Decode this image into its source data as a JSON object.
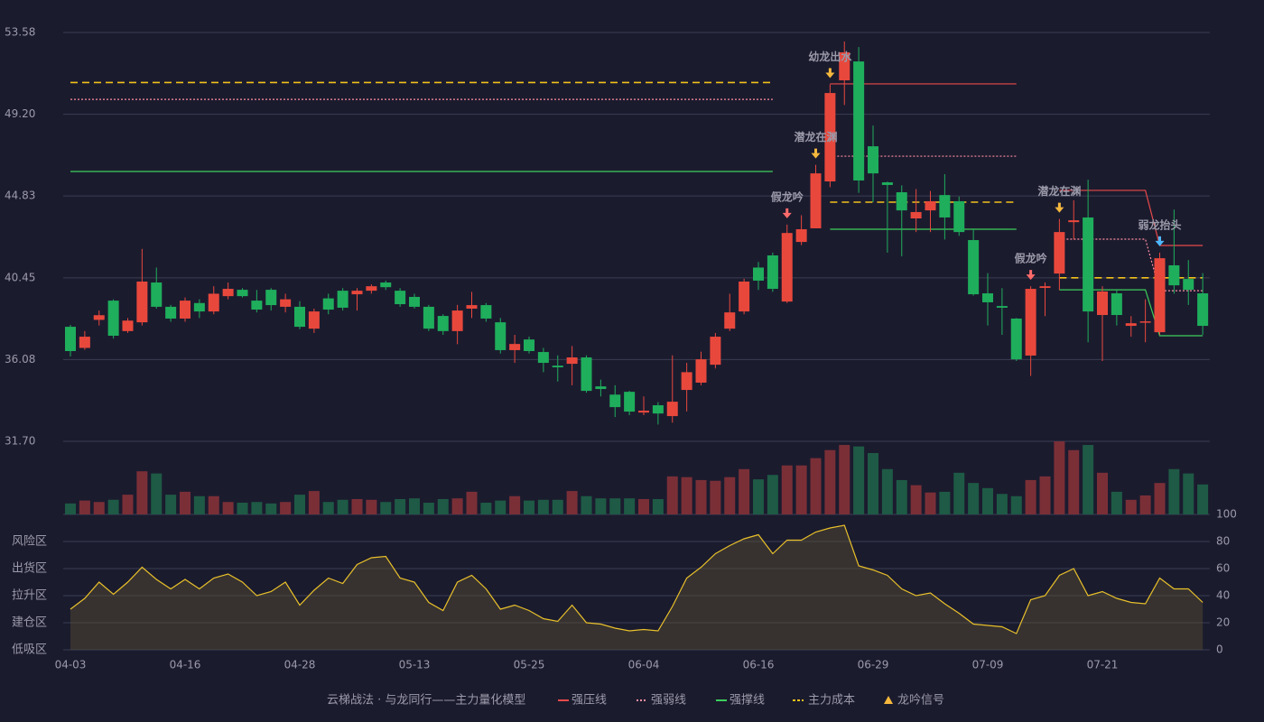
{
  "chart_data": [
    {
      "type": "candlestick",
      "categories": [
        "04-03",
        null,
        null,
        null,
        null,
        null,
        null,
        null,
        "04-16",
        null,
        null,
        null,
        null,
        null,
        null,
        null,
        "04-28",
        null,
        null,
        null,
        null,
        null,
        null,
        null,
        "05-13",
        null,
        null,
        null,
        null,
        null,
        null,
        null,
        "05-25",
        null,
        null,
        null,
        null,
        null,
        null,
        null,
        "06-04",
        null,
        null,
        null,
        null,
        null,
        null,
        null,
        "06-16",
        null,
        null,
        null,
        null,
        null,
        null,
        null,
        "06-29",
        null,
        null,
        null,
        null,
        null,
        null,
        null,
        "07-09",
        null,
        null,
        null,
        null,
        null,
        null,
        null,
        "07-21",
        null,
        null,
        null,
        null,
        null,
        null,
        null
      ],
      "open": [
        37.83,
        36.7,
        38.2,
        39.23,
        37.6,
        38.07,
        40.2,
        38.9,
        38.27,
        39.1,
        38.65,
        39.47,
        39.81,
        39.23,
        39.81,
        38.9,
        38.9,
        37.73,
        39.35,
        39.76,
        39.57,
        39.76,
        40.2,
        39.76,
        39.43,
        38.9,
        38.41,
        37.6,
        38.8,
        38.99,
        38.07,
        36.58,
        37.15,
        36.48,
        35.75,
        35.85,
        36.19,
        34.64,
        34.2,
        34.35,
        33.24,
        33.63,
        33.05,
        34.45,
        34.84,
        35.8,
        37.73,
        38.65,
        41.0,
        41.65,
        39.18,
        42.37,
        43.1,
        45.61,
        51.02,
        52.03,
        47.49,
        45.56,
        45.03,
        43.63,
        44.06,
        44.88,
        44.55,
        42.47,
        39.62,
        38.94,
        38.27,
        36.29,
        39.91,
        40.68,
        43.43,
        43.68,
        38.46,
        39.62,
        37.88,
        38.07,
        37.54,
        41.12,
        40.39,
        39.62
      ],
      "high": [
        37.93,
        37.6,
        38.7,
        39.3,
        38.3,
        42.0,
        41.0,
        39.0,
        39.4,
        39.3,
        40.0,
        40.2,
        39.9,
        39.8,
        39.9,
        39.6,
        39.2,
        38.8,
        39.6,
        39.9,
        39.9,
        40.1,
        40.3,
        39.9,
        39.6,
        39.0,
        38.5,
        39.0,
        39.7,
        39.1,
        38.3,
        37.4,
        37.3,
        36.7,
        36.3,
        36.8,
        36.3,
        35.0,
        34.7,
        34.4,
        34.1,
        33.8,
        36.3,
        35.9,
        36.5,
        37.5,
        39.6,
        40.4,
        41.3,
        41.8,
        43.3,
        43.8,
        46.5,
        50.8,
        53.1,
        52.8,
        48.6,
        45.6,
        45.4,
        45.2,
        45.1,
        46.0,
        44.8,
        43.1,
        40.7,
        39.9,
        38.3,
        40.0,
        40.2,
        43.6,
        44.6,
        45.7,
        40.0,
        39.8,
        38.4,
        39.3,
        41.8,
        44.1,
        41.4,
        40.7
      ],
      "low": [
        36.24,
        36.6,
        37.9,
        37.2,
        37.5,
        37.9,
        38.8,
        38.1,
        38.1,
        38.3,
        38.5,
        39.3,
        39.4,
        38.6,
        38.7,
        38.6,
        37.7,
        37.5,
        38.5,
        38.7,
        38.7,
        39.6,
        39.8,
        38.9,
        38.8,
        37.6,
        37.4,
        36.9,
        38.3,
        38.1,
        36.4,
        35.9,
        36.4,
        35.4,
        34.9,
        34.7,
        34.3,
        34.1,
        33.0,
        33.1,
        33.1,
        32.6,
        32.7,
        33.3,
        34.7,
        35.6,
        37.6,
        38.5,
        39.8,
        39.7,
        39.1,
        42.2,
        43.1,
        45.3,
        49.7,
        45.0,
        44.5,
        41.8,
        41.6,
        42.9,
        42.9,
        42.5,
        42.7,
        39.5,
        37.9,
        37.4,
        36.0,
        35.2,
        38.4,
        39.8,
        42.5,
        37.0,
        36.0,
        37.9,
        37.3,
        37.0,
        37.4,
        39.6,
        39.0,
        37.4
      ],
      "close": [
        36.53,
        37.3,
        38.45,
        37.35,
        38.16,
        40.25,
        38.9,
        38.27,
        39.23,
        38.65,
        39.6,
        39.86,
        39.47,
        38.75,
        38.99,
        39.3,
        37.83,
        38.65,
        38.75,
        38.85,
        39.76,
        40.0,
        39.95,
        39.04,
        38.9,
        37.73,
        37.6,
        38.7,
        38.99,
        38.27,
        36.58,
        36.91,
        36.53,
        35.9,
        35.66,
        36.19,
        34.4,
        34.5,
        33.53,
        33.29,
        33.34,
        33.19,
        33.82,
        35.4,
        36.09,
        37.3,
        38.6,
        40.25,
        40.3,
        39.86,
        42.85,
        43.05,
        46.04,
        50.34,
        52.52,
        45.66,
        46.04,
        45.42,
        44.06,
        43.97,
        44.55,
        43.68,
        42.9,
        39.57,
        39.14,
        38.85,
        36.09,
        39.86,
        40.0,
        42.9,
        43.53,
        38.65,
        39.72,
        38.46,
        38.02,
        38.12,
        41.5,
        40.05,
        39.81,
        37.88
      ],
      "up_color": "#e8483c",
      "down_color": "#1fae5c",
      "ylim": [
        31.7,
        53.58
      ],
      "yticks": [
        {
          "value": 31.7,
          "label": "31.70"
        },
        36.08,
        40.45,
        44.83,
        {
          "value": 49.2,
          "label": "49.20"
        },
        53.58
      ],
      "grid": true,
      "levels": [
        {
          "name": "强压线",
          "color": "#e84a4a",
          "dash": "none",
          "values": [
            null,
            null,
            null,
            null,
            null,
            null,
            null,
            null,
            null,
            null,
            null,
            null,
            null,
            null,
            null,
            null,
            null,
            null,
            null,
            null,
            null,
            null,
            null,
            null,
            null,
            null,
            null,
            null,
            null,
            null,
            null,
            null,
            null,
            null,
            null,
            null,
            null,
            null,
            null,
            null,
            null,
            null,
            null,
            null,
            null,
            null,
            null,
            null,
            null,
            null,
            null,
            null,
            null,
            50.83,
            50.83,
            50.83,
            50.83,
            50.83,
            50.83,
            50.83,
            50.83,
            50.83,
            50.83,
            50.83,
            50.83,
            50.83,
            50.83,
            null,
            null,
            45.13,
            45.13,
            45.13,
            45.13,
            45.13,
            45.13,
            45.13,
            42.18,
            42.18,
            42.18,
            42.18
          ]
        },
        {
          "name": "强弱线",
          "color": "#ff8fa0",
          "dash": "2,2",
          "values": [
            50.0,
            50.0,
            50.0,
            50.0,
            50.0,
            50.0,
            50.0,
            50.0,
            50.0,
            50.0,
            50.0,
            50.0,
            50.0,
            50.0,
            50.0,
            50.0,
            50.0,
            50.0,
            50.0,
            50.0,
            50.0,
            50.0,
            50.0,
            50.0,
            50.0,
            50.0,
            50.0,
            50.0,
            50.0,
            50.0,
            50.0,
            50.0,
            50.0,
            50.0,
            50.0,
            50.0,
            50.0,
            50.0,
            50.0,
            50.0,
            50.0,
            50.0,
            50.0,
            50.0,
            50.0,
            50.0,
            50.0,
            50.0,
            50.0,
            50.0,
            null,
            null,
            null,
            46.96,
            46.96,
            46.96,
            46.96,
            46.96,
            46.96,
            46.96,
            46.96,
            46.96,
            46.96,
            46.96,
            46.96,
            46.96,
            46.96,
            null,
            null,
            42.52,
            42.52,
            42.52,
            42.52,
            42.52,
            42.52,
            42.52,
            39.76,
            39.76,
            39.76,
            39.76
          ]
        },
        {
          "name": "强撑线",
          "color": "#3ccf5a",
          "dash": "none",
          "values": [
            46.14,
            46.14,
            46.14,
            46.14,
            46.14,
            46.14,
            46.14,
            46.14,
            46.14,
            46.14,
            46.14,
            46.14,
            46.14,
            46.14,
            46.14,
            46.14,
            46.14,
            46.14,
            46.14,
            46.14,
            46.14,
            46.14,
            46.14,
            46.14,
            46.14,
            46.14,
            46.14,
            46.14,
            46.14,
            46.14,
            46.14,
            46.14,
            46.14,
            46.14,
            46.14,
            46.14,
            46.14,
            46.14,
            46.14,
            46.14,
            46.14,
            46.14,
            46.14,
            46.14,
            46.14,
            46.14,
            46.14,
            46.14,
            46.14,
            46.14,
            null,
            null,
            null,
            43.05,
            43.05,
            43.05,
            43.05,
            43.05,
            43.05,
            43.05,
            43.05,
            43.05,
            43.05,
            43.05,
            43.05,
            43.05,
            43.05,
            null,
            null,
            39.81,
            39.81,
            39.81,
            39.81,
            39.81,
            39.81,
            39.81,
            37.35,
            37.35,
            37.35,
            37.35
          ]
        },
        {
          "name": "主力成本",
          "color": "#f2c21b",
          "dash": "8,5",
          "values": [
            50.9,
            50.9,
            50.9,
            50.9,
            50.9,
            50.9,
            50.9,
            50.9,
            50.9,
            50.9,
            50.9,
            50.9,
            50.9,
            50.9,
            50.9,
            50.9,
            50.9,
            50.9,
            50.9,
            50.9,
            50.9,
            50.9,
            50.9,
            50.9,
            50.9,
            50.9,
            50.9,
            50.9,
            50.9,
            50.9,
            50.9,
            50.9,
            50.9,
            50.9,
            50.9,
            50.9,
            50.9,
            50.9,
            50.9,
            50.9,
            50.9,
            50.9,
            50.9,
            50.9,
            50.9,
            50.9,
            50.9,
            50.9,
            50.9,
            50.9,
            null,
            null,
            null,
            44.5,
            44.5,
            44.5,
            44.5,
            44.5,
            44.5,
            44.5,
            44.5,
            44.5,
            44.5,
            44.5,
            44.5,
            44.5,
            44.5,
            null,
            null,
            40.45,
            40.45,
            40.45,
            40.45,
            40.45,
            40.45,
            40.45,
            40.45,
            40.45,
            40.45,
            40.45
          ]
        }
      ],
      "signals": [
        {
          "index": 50,
          "label": "假龙吟",
          "color": "#ff6b6b"
        },
        {
          "index": 52,
          "label": "潜龙在渊",
          "color": "#f5b83d"
        },
        {
          "index": 53,
          "label": "幼龙出水",
          "color": "#f5b83d"
        },
        {
          "index": 67,
          "label": "假龙吟",
          "color": "#ff6b6b"
        },
        {
          "index": 69,
          "label": "潜龙在渊",
          "color": "#f5b83d"
        },
        {
          "index": 76,
          "label": "弱龙抬头",
          "color": "#4db8ff"
        }
      ],
      "legend_title": "云梯战法 · 与龙同行——主力量化模型",
      "signal_legend": "龙吟信号",
      "signal_legend_color": "#f5b83d"
    },
    {
      "type": "bar",
      "up_color": "#7a2f37",
      "down_color": "#1e5a45",
      "ylim": [
        0,
        100
      ],
      "values": [
        15,
        19,
        17,
        20,
        27,
        59,
        56,
        27,
        31,
        25,
        25,
        17,
        16,
        17,
        15,
        17,
        27,
        32,
        17,
        20,
        21,
        20,
        17,
        21,
        22,
        16,
        21,
        22,
        31,
        16,
        19,
        25,
        19,
        20,
        20,
        32,
        25,
        22,
        22,
        22,
        21,
        21,
        52,
        51,
        47,
        46,
        51,
        62,
        48,
        54,
        67,
        67,
        77,
        88,
        95,
        93,
        84,
        62,
        47,
        40,
        30,
        31,
        57,
        43,
        36,
        28,
        25,
        47,
        52,
        100,
        88,
        95,
        57,
        31,
        20,
        26,
        43,
        62,
        56,
        41
      ]
    },
    {
      "type": "line",
      "color": "#e8c02a",
      "fill": "rgba(90,80,50,0.45)",
      "ylim": [
        0,
        100
      ],
      "values": [
        30,
        38,
        50,
        41,
        50,
        61,
        52,
        45,
        52,
        45,
        53,
        56,
        50,
        40,
        43,
        50,
        33,
        44,
        53,
        49,
        63,
        68,
        69,
        53,
        50,
        35,
        29,
        50,
        55,
        45,
        30,
        33,
        29,
        23,
        21,
        33,
        20,
        19,
        16,
        14,
        15,
        14,
        32,
        53,
        61,
        71,
        77,
        82,
        85,
        71,
        81,
        81,
        87,
        90,
        92,
        62,
        59,
        55,
        45,
        40,
        42,
        34,
        27,
        19,
        18,
        17,
        12,
        37,
        40,
        55,
        60,
        40,
        43,
        38,
        35,
        34,
        53,
        45,
        45,
        35
      ],
      "yticks": [
        0,
        20,
        40,
        60,
        80,
        100
      ],
      "ytick_colors": [
        "#ff4d4d",
        "#ff4d4d",
        "#4d8fff",
        "#e040e0",
        "#f5a623",
        "#3ccf5a"
      ],
      "zones": [
        {
          "label": "低吸区",
          "value": 0,
          "color": "#ff5a5a"
        },
        {
          "label": "建仓区",
          "value": 20,
          "color": "#ff6b6b"
        },
        {
          "label": "拉升区",
          "value": 40,
          "color": "#5aa0ff"
        },
        {
          "label": "出货区",
          "value": 60,
          "color": "#e040e0"
        },
        {
          "label": "风险区",
          "value": 80,
          "color": "#f5a623"
        }
      ]
    }
  ]
}
